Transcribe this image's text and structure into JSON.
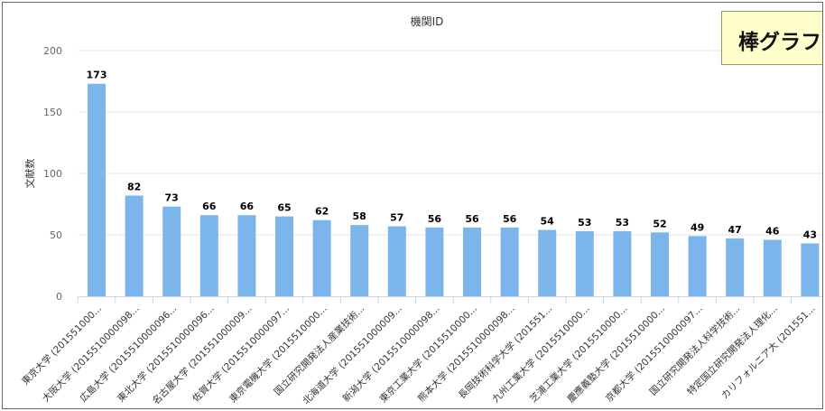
{
  "badge_text": "棒グラフ",
  "chart_data": {
    "type": "bar",
    "title": "機関ID",
    "xlabel": "",
    "ylabel": "文献数",
    "ylim": [
      0,
      200
    ],
    "yticks": [
      0,
      50,
      100,
      150,
      200
    ],
    "grid": true,
    "bar_color": "#7cb5ec",
    "categories": [
      "東京大学 (201551000...",
      "大阪大学 (2015510000098...",
      "広島大学 (2015510000096...",
      "東北大学 (2015510000096...",
      "名古屋大学 (201551000009...",
      "佐賀大学 (2015510000097...",
      "東京電機大学 (2015510000...",
      "国立研究開発法人産業技術...",
      "北海道大学 (201551000009...",
      "新潟大学 (2015510000098...",
      "東京工業大学 (2015510000...",
      "熊本大学 (2015510000098...",
      "長岡技術科学大学 (201551...",
      "九州工業大学 (2015510000...",
      "芝浦工業大学 (2015510000...",
      "慶應義塾大学 (2015510000...",
      "京都大学 (2015510000097...",
      "国立研究開発法人科学技術...",
      "特定国立研究開発法人理化...",
      "カリフォルニア大 (201551..."
    ],
    "values": [
      173,
      82,
      73,
      66,
      66,
      65,
      62,
      58,
      57,
      56,
      56,
      56,
      54,
      53,
      53,
      52,
      49,
      47,
      46,
      43
    ]
  }
}
